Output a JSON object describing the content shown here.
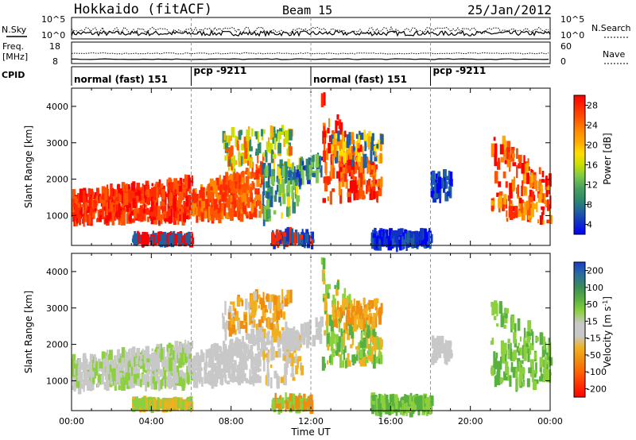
{
  "header": {
    "station": "Hokkaido (fitACF)",
    "beam": "Beam 15",
    "date": "25/Jan/2012"
  },
  "panels": {
    "nsky_label": "N.Sky",
    "nsearch_label": "N.Search",
    "freq_label": "Freq.",
    "freq_unit": "[MHz]",
    "nave_label": "Nave",
    "cpid_label": "CPID",
    "noise_ticks": [
      "10^5",
      "10^0"
    ],
    "freq_ticks": [
      "18",
      "8"
    ],
    "nave_ticks": [
      "60",
      "0"
    ]
  },
  "cpid_segments": [
    {
      "label": "normal (fast) 151",
      "start_h": 0
    },
    {
      "label": "pcp -9211",
      "start_h": 6
    },
    {
      "label": "normal (fast) 151",
      "start_h": 12
    },
    {
      "label": "pcp -9211",
      "start_h": 18
    }
  ],
  "colorbars": {
    "power": {
      "title": "Power [dB]",
      "ticks": [
        "28",
        "24",
        "20",
        "16",
        "12",
        "8",
        "4"
      ],
      "colors": [
        "#ff0000",
        "#ff2a00",
        "#ff5500",
        "#ff8800",
        "#ffaa00",
        "#ffdd00",
        "#c8e000",
        "#7cc84a",
        "#4aa060",
        "#2e8a6a",
        "#2060a0",
        "#1030c8",
        "#0000ff"
      ]
    },
    "velocity": {
      "title": "Velocity [m s",
      "title_sup": "-1",
      "title_end": "]",
      "ticks": [
        "200",
        "100",
        "50",
        "15",
        "-15",
        "-50",
        "-100",
        "-200"
      ],
      "colors": [
        "#1a3cc8",
        "#2a6ea0",
        "#3a8a5a",
        "#58b040",
        "#8cd040",
        "#c8c8c8",
        "#c8c8c8",
        "#f0b020",
        "#f08c10",
        "#ff6000",
        "#ff3000",
        "#ff0000"
      ]
    }
  },
  "chart_data": {
    "type": "heatmap",
    "title": "Hokkaido (fitACF) Beam 15 25/Jan/2012",
    "xlabel": "Time UT",
    "ylabel": "Slant Range [km]",
    "x_ticks": [
      "00:00",
      "04:00",
      "08:00",
      "12:00",
      "16:00",
      "20:00",
      "00:00"
    ],
    "y_ticks": [
      "1000",
      "2000",
      "3000",
      "4000"
    ],
    "xlim_hours": [
      0,
      24
    ],
    "ylim_km": [
      180,
      4500
    ],
    "dashed_time_markers_hours": [
      6,
      12,
      18
    ]
  }
}
